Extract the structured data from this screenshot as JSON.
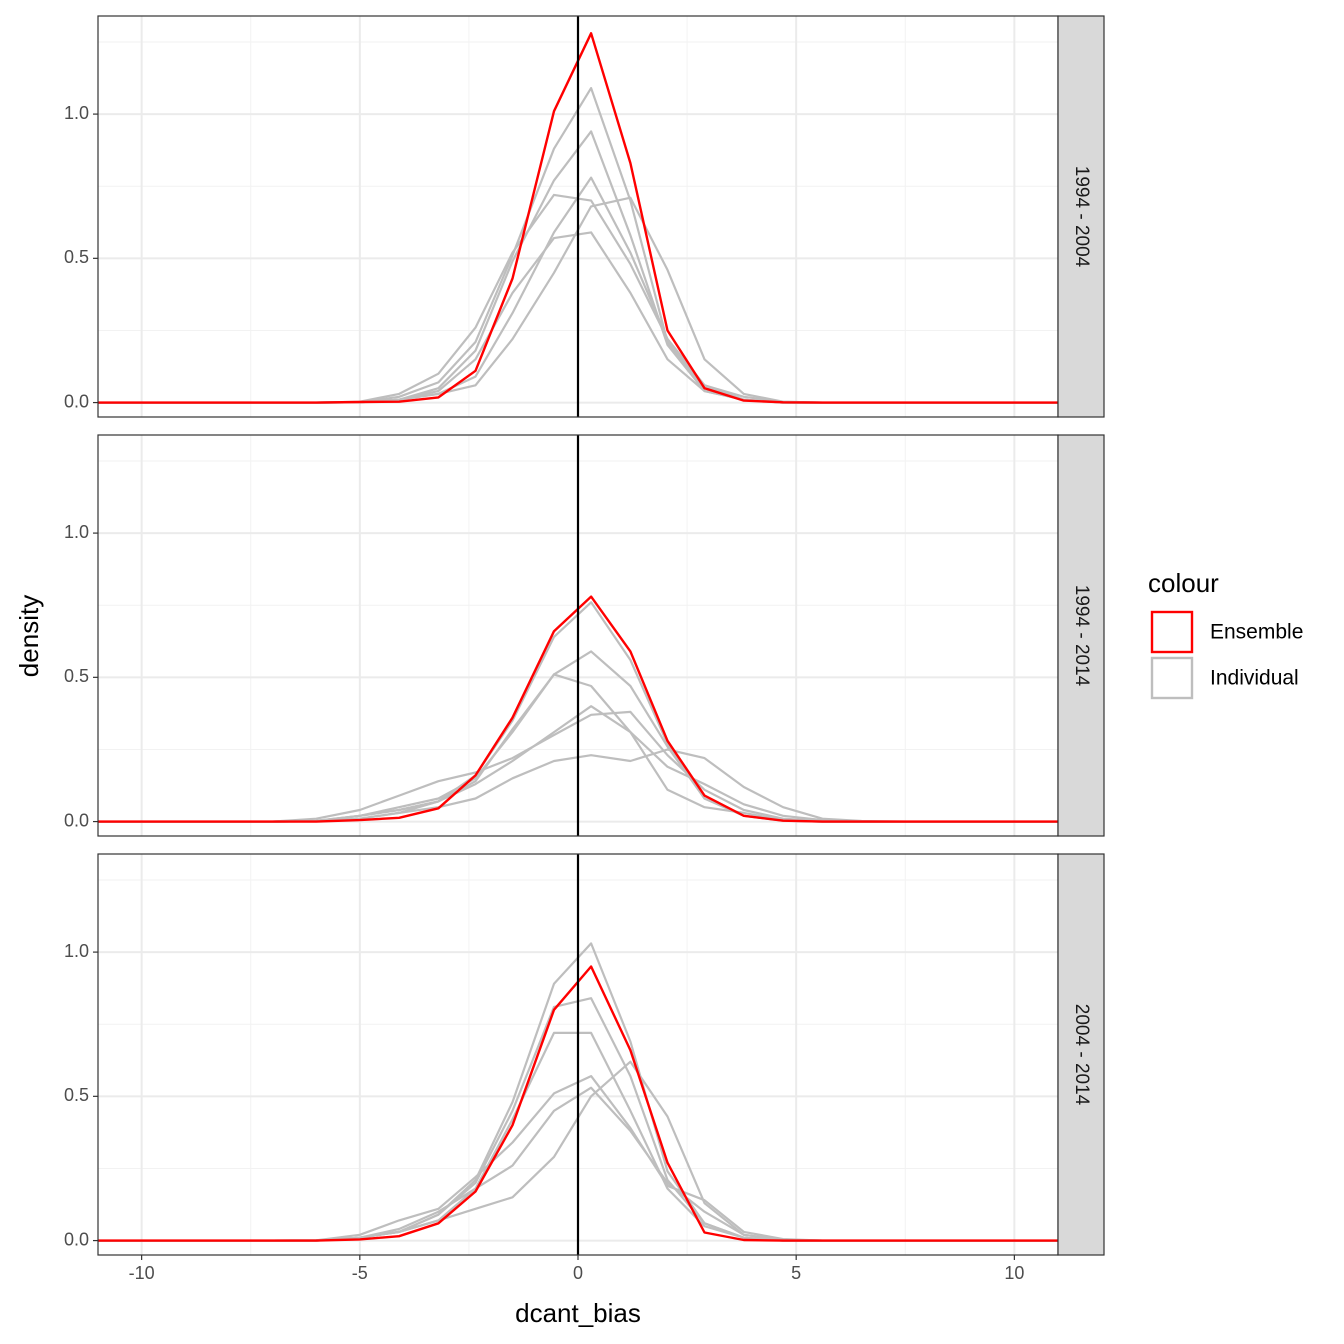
{
  "chart_data": {
    "type": "line",
    "xlabel": "dcant_bias",
    "ylabel": "density",
    "xlim": [
      -11,
      11
    ],
    "ylim": [
      -0.05,
      1.34
    ],
    "x_ticks": [
      -10,
      -5,
      0,
      5,
      10
    ],
    "x_tick_labels": [
      "-10",
      "-5",
      "0",
      "5",
      "10"
    ],
    "y_ticks": [
      0,
      0.5,
      1
    ],
    "y_tick_labels": [
      "0.0",
      "0.5",
      "1.0"
    ],
    "vline_x": 0,
    "grid": true,
    "legend": {
      "title": "colour",
      "position": "right",
      "items": [
        {
          "label": "Ensemble",
          "color": "#ff0000"
        },
        {
          "label": "Individual",
          "color": "#bebebe"
        }
      ]
    },
    "x": [
      -11,
      -10,
      -9,
      -8,
      -7,
      -6,
      -5,
      -4.1,
      -3.2,
      -2.35,
      -1.5,
      -0.55,
      0.3,
      1.2,
      2.05,
      2.9,
      3.8,
      4.7,
      5.6,
      6.5,
      7.5,
      8.5,
      9.5,
      11
    ],
    "facets": [
      {
        "label": "1994 - 2004",
        "ensemble": [
          0,
          0,
          0,
          0,
          0,
          0,
          0.002,
          0.003,
          0.018,
          0.11,
          0.43,
          1.01,
          1.28,
          0.83,
          0.25,
          0.05,
          0.007,
          0.001,
          0,
          0,
          0,
          0,
          0,
          0
        ],
        "individual": [
          [
            0,
            0,
            0,
            0,
            0,
            0,
            0.001,
            0.02,
            0.07,
            0.21,
            0.51,
            0.88,
            1.09,
            0.7,
            0.21,
            0.05,
            0.01,
            0,
            0,
            0,
            0,
            0,
            0,
            0
          ],
          [
            0,
            0,
            0,
            0,
            0,
            0,
            0.003,
            0.03,
            0.1,
            0.26,
            0.52,
            0.72,
            0.7,
            0.48,
            0.22,
            0.06,
            0.02,
            0.003,
            0,
            0,
            0,
            0,
            0,
            0
          ],
          [
            0,
            0,
            0,
            0,
            0,
            0,
            0.002,
            0.01,
            0.05,
            0.18,
            0.49,
            0.77,
            0.94,
            0.58,
            0.2,
            0.04,
            0.01,
            0,
            0,
            0,
            0,
            0,
            0,
            0
          ],
          [
            0,
            0,
            0,
            0,
            0,
            0,
            0.001,
            0.01,
            0.04,
            0.15,
            0.38,
            0.57,
            0.59,
            0.38,
            0.15,
            0.04,
            0.01,
            0,
            0,
            0,
            0,
            0,
            0,
            0
          ],
          [
            0,
            0,
            0,
            0,
            0,
            0,
            0.001,
            0.01,
            0.03,
            0.06,
            0.22,
            0.45,
            0.68,
            0.71,
            0.46,
            0.15,
            0.03,
            0.003,
            0,
            0,
            0,
            0,
            0,
            0
          ],
          [
            0,
            0,
            0,
            0,
            0,
            0,
            0.001,
            0.01,
            0.03,
            0.09,
            0.31,
            0.59,
            0.78,
            0.52,
            0.22,
            0.06,
            0.01,
            0,
            0,
            0,
            0,
            0,
            0,
            0
          ]
        ]
      },
      {
        "label": "1994 - 2014",
        "ensemble": [
          0,
          0,
          0,
          0,
          0,
          0,
          0.005,
          0.013,
          0.046,
          0.16,
          0.36,
          0.66,
          0.78,
          0.59,
          0.28,
          0.09,
          0.02,
          0.003,
          0,
          0,
          0,
          0,
          0,
          0
        ],
        "individual": [
          [
            0,
            0,
            0,
            0,
            0,
            0.001,
            0.01,
            0.03,
            0.07,
            0.16,
            0.35,
            0.64,
            0.76,
            0.56,
            0.27,
            0.08,
            0.02,
            0.003,
            0,
            0,
            0,
            0,
            0,
            0
          ],
          [
            0,
            0,
            0,
            0,
            0,
            0.01,
            0.04,
            0.09,
            0.14,
            0.17,
            0.22,
            0.3,
            0.37,
            0.38,
            0.23,
            0.11,
            0.04,
            0.01,
            0.002,
            0,
            0,
            0,
            0,
            0
          ],
          [
            0,
            0,
            0,
            0,
            0,
            0.002,
            0.02,
            0.05,
            0.08,
            0.15,
            0.31,
            0.51,
            0.59,
            0.47,
            0.26,
            0.08,
            0.02,
            0.003,
            0,
            0,
            0,
            0,
            0,
            0
          ],
          [
            0,
            0,
            0,
            0,
            0,
            0.003,
            0.02,
            0.04,
            0.07,
            0.14,
            0.32,
            0.51,
            0.47,
            0.31,
            0.11,
            0.05,
            0.03,
            0.005,
            0,
            0,
            0,
            0,
            0,
            0
          ],
          [
            0,
            0,
            0,
            0,
            0,
            0.002,
            0.01,
            0.03,
            0.05,
            0.08,
            0.15,
            0.21,
            0.23,
            0.21,
            0.25,
            0.22,
            0.12,
            0.05,
            0.01,
            0.002,
            0,
            0,
            0,
            0
          ],
          [
            0,
            0,
            0,
            0,
            0,
            0.002,
            0.02,
            0.04,
            0.07,
            0.13,
            0.21,
            0.31,
            0.4,
            0.31,
            0.19,
            0.13,
            0.06,
            0.02,
            0.005,
            0,
            0,
            0,
            0,
            0
          ]
        ]
      },
      {
        "label": "2004 - 2014",
        "ensemble": [
          0,
          0,
          0,
          0,
          0,
          0,
          0.004,
          0.015,
          0.06,
          0.17,
          0.4,
          0.8,
          0.95,
          0.66,
          0.27,
          0.028,
          0.002,
          0,
          0,
          0,
          0,
          0,
          0,
          0
        ],
        "individual": [
          [
            0,
            0,
            0,
            0,
            0,
            0,
            0.01,
            0.03,
            0.09,
            0.21,
            0.48,
            0.89,
            1.03,
            0.69,
            0.24,
            0.06,
            0.01,
            0,
            0,
            0,
            0,
            0,
            0,
            0
          ],
          [
            0,
            0,
            0,
            0,
            0,
            0,
            0.01,
            0.03,
            0.09,
            0.2,
            0.45,
            0.81,
            0.84,
            0.57,
            0.21,
            0.06,
            0.01,
            0,
            0,
            0,
            0,
            0,
            0,
            0
          ],
          [
            0,
            0,
            0,
            0,
            0,
            0,
            0.01,
            0.03,
            0.07,
            0.18,
            0.42,
            0.72,
            0.72,
            0.45,
            0.18,
            0.05,
            0.01,
            0,
            0,
            0,
            0,
            0,
            0,
            0
          ],
          [
            0,
            0,
            0,
            0,
            0,
            0.001,
            0.02,
            0.07,
            0.11,
            0.22,
            0.34,
            0.51,
            0.57,
            0.39,
            0.19,
            0.14,
            0.03,
            0.005,
            0,
            0,
            0,
            0,
            0,
            0
          ],
          [
            0,
            0,
            0,
            0,
            0,
            0.001,
            0.01,
            0.03,
            0.07,
            0.11,
            0.15,
            0.29,
            0.5,
            0.62,
            0.43,
            0.13,
            0.02,
            0.002,
            0,
            0,
            0,
            0,
            0,
            0
          ],
          [
            0,
            0,
            0,
            0,
            0,
            0.001,
            0.01,
            0.04,
            0.1,
            0.18,
            0.26,
            0.45,
            0.53,
            0.38,
            0.2,
            0.1,
            0.02,
            0.003,
            0,
            0,
            0,
            0,
            0,
            0
          ]
        ]
      }
    ]
  }
}
